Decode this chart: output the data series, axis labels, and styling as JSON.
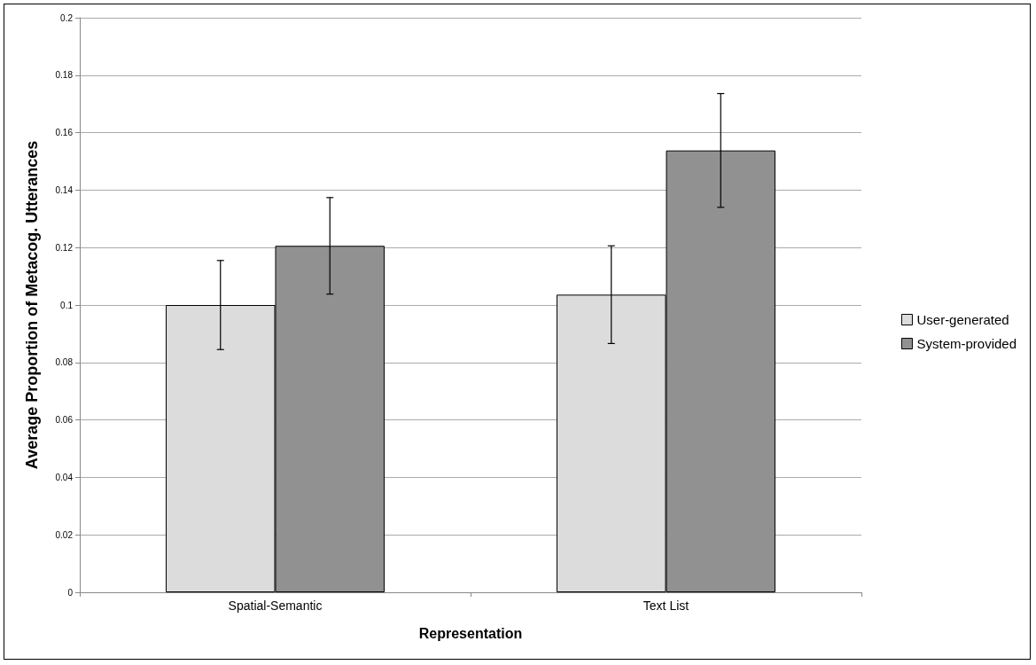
{
  "chart_data": {
    "type": "bar",
    "xlabel": "Representation",
    "ylabel": "Average Proportion of Metacog. Utterances",
    "categories": [
      "Spatial-Semantic",
      "Text List"
    ],
    "series": [
      {
        "name": "User-generated",
        "color": "#dcdcdc",
        "values": [
          0.1,
          0.1036
        ],
        "errors": [
          0.0155,
          0.017
        ]
      },
      {
        "name": "System-provided",
        "color": "#919191",
        "values": [
          0.1206,
          0.1538
        ],
        "errors": [
          0.0168,
          0.0198
        ]
      }
    ],
    "ylim": [
      0,
      0.2
    ],
    "yticks": [
      0,
      0.02,
      0.04,
      0.06,
      0.08,
      0.1,
      0.12,
      0.14,
      0.16,
      0.18,
      0.2
    ],
    "grid": "y",
    "legend": "right"
  }
}
